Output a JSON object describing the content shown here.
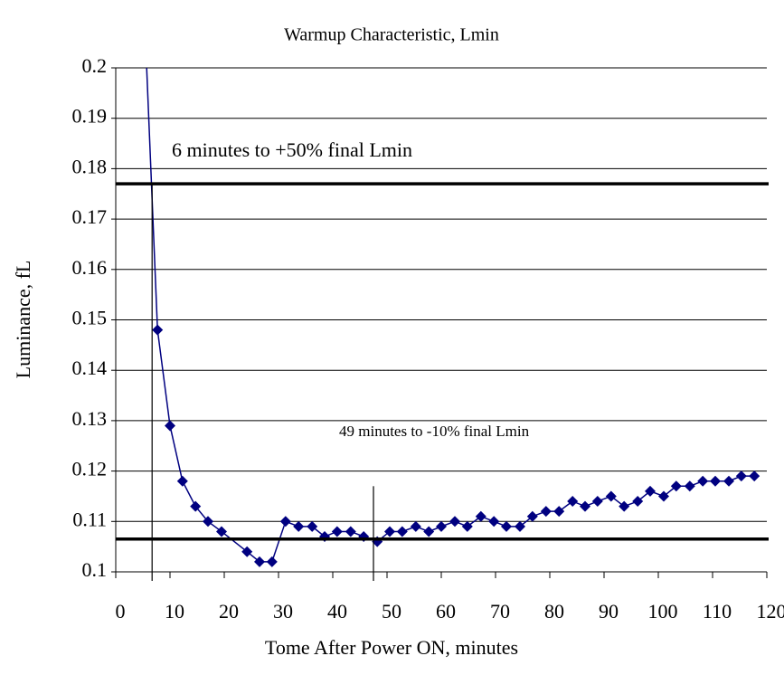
{
  "chart_data": {
    "type": "line",
    "title": "Warmup Characteristic, Lmin",
    "x_label": "Tome After Power ON, minutes",
    "y_label": "Luminance, fL",
    "annotations": [
      "6 minutes to +50% final Lmin",
      "49 minutes to -10% final Lmin"
    ],
    "x": [
      5.7,
      7.7,
      10,
      12.3,
      14.7,
      17,
      19.5,
      24.2,
      26.5,
      28.8,
      31.3,
      33.7,
      36.2,
      38.5,
      40.8,
      43.3,
      45.7,
      48.2,
      50.5,
      52.8,
      55.3,
      57.7,
      60,
      62.5,
      64.8,
      67.3,
      69.7,
      72,
      74.5,
      76.8,
      79.3,
      81.7,
      84.2,
      86.5,
      88.8,
      91.3,
      93.7,
      96.2,
      98.5,
      101,
      103.3,
      105.8,
      108.2,
      110.5,
      113,
      115.3,
      117.7
    ],
    "series": [
      {
        "color": "#000080",
        "values": [
          0.2,
          0.148,
          0.129,
          0.118,
          0.113,
          0.11,
          0.108,
          0.104,
          0.102,
          0.102,
          0.11,
          0.109,
          0.109,
          0.107,
          0.108,
          0.108,
          0.107,
          0.106,
          0.108,
          0.108,
          0.109,
          0.108,
          0.109,
          0.11,
          0.109,
          0.111,
          0.11,
          0.109,
          0.109,
          0.111,
          0.112,
          0.112,
          0.114,
          0.113,
          0.114,
          0.115,
          0.113,
          0.114,
          0.116,
          0.115,
          0.117,
          0.117,
          0.118,
          0.118,
          0.118,
          0.119,
          0.119
        ]
      }
    ],
    "reference_hlines": [
      0.177,
      0.1065
    ],
    "reference_vlines": [
      {
        "x": 6.7,
        "top": 0.177
      },
      {
        "x": 47.5,
        "top": 0.117
      }
    ],
    "xlim": [
      0,
      120
    ],
    "xticks": [
      0,
      10,
      20,
      30,
      40,
      50,
      60,
      70,
      80,
      90,
      100,
      110,
      120
    ],
    "ylim": [
      0.1,
      0.2
    ],
    "yticks": [
      0.1,
      0.11,
      0.12,
      0.13,
      0.14,
      0.15,
      0.16,
      0.17,
      0.18,
      0.19,
      0.2
    ],
    "grid": true
  }
}
